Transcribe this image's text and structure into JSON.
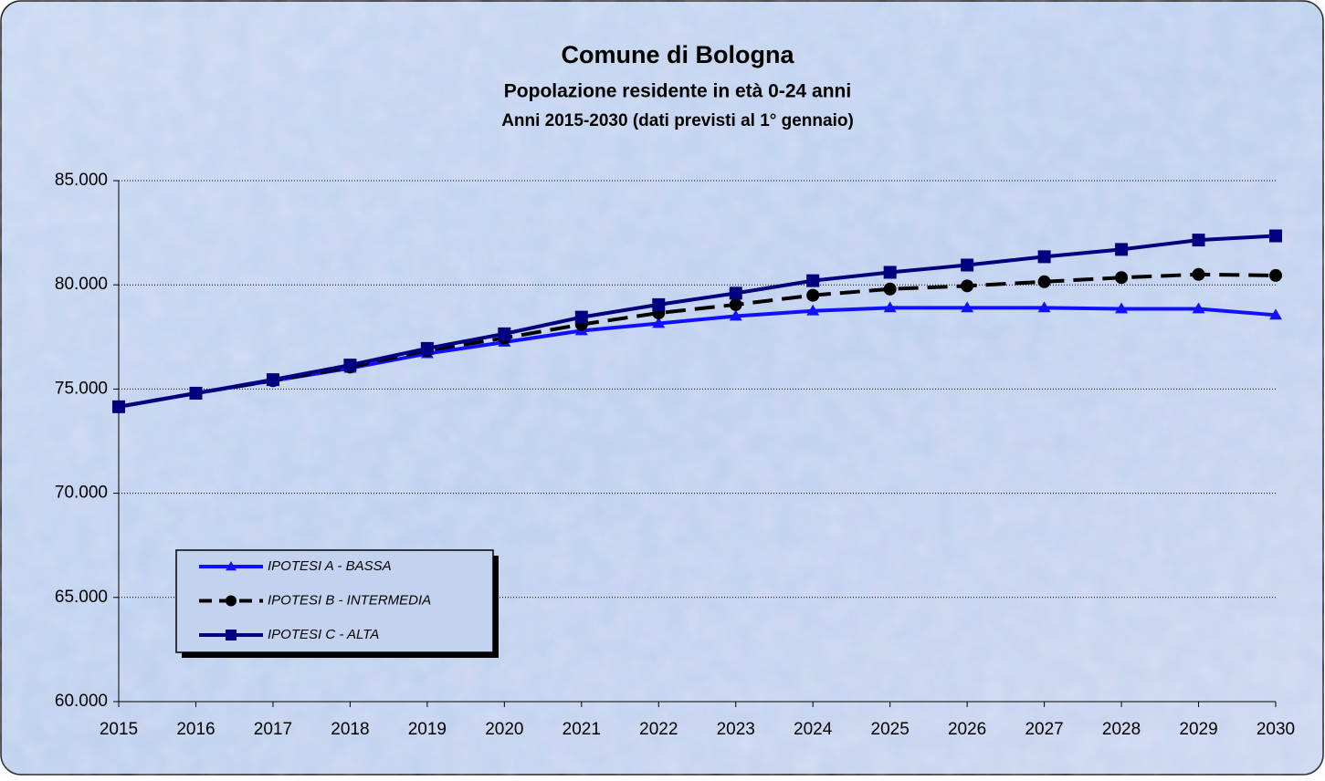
{
  "chart_data": {
    "type": "line",
    "title": "Comune di Bologna",
    "subtitle": "Popolazione residente in età 0-24 anni",
    "subtitle2": "Anni 2015-2030 (dati previsti al 1° gennaio)",
    "categories": [
      "2015",
      "2016",
      "2017",
      "2018",
      "2019",
      "2020",
      "2021",
      "2022",
      "2023",
      "2024",
      "2025",
      "2026",
      "2027",
      "2028",
      "2029",
      "2030"
    ],
    "series": [
      {
        "name": "IPOTESI A - BASSA",
        "color": "#1010ff",
        "marker": "triangle",
        "values": [
          74150,
          74800,
          75400,
          76000,
          76700,
          77250,
          77800,
          78150,
          78500,
          78750,
          78900,
          78900,
          78900,
          78850,
          78850,
          78550
        ]
      },
      {
        "name": "IPOTESI B - INTERMEDIA",
        "color": "#000000",
        "marker": "circle",
        "dashed": true,
        "values": [
          74150,
          74800,
          75400,
          76050,
          76850,
          77450,
          78100,
          78650,
          79050,
          79500,
          79800,
          79950,
          80150,
          80350,
          80500,
          80450
        ]
      },
      {
        "name": "IPOTESI C - ALTA",
        "color": "#000080",
        "marker": "square",
        "values": [
          74150,
          74800,
          75450,
          76150,
          76950,
          77650,
          78450,
          79050,
          79600,
          80200,
          80600,
          80950,
          81350,
          81700,
          82150,
          82350
        ]
      }
    ],
    "ylim": [
      60000,
      85000
    ],
    "yticks": [
      {
        "value": 60000,
        "label": "60.000"
      },
      {
        "value": 65000,
        "label": "65.000"
      },
      {
        "value": 70000,
        "label": "70.000"
      },
      {
        "value": 75000,
        "label": "75.000"
      },
      {
        "value": 80000,
        "label": "80.000"
      },
      {
        "value": 85000,
        "label": "85.000"
      }
    ],
    "grid": true,
    "legend": "lower-left"
  }
}
